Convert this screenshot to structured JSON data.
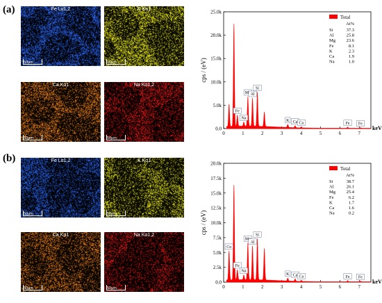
{
  "figure": {
    "panels": [
      {
        "letter": "(a)",
        "maps": [
          {
            "label": "Fe Lα1,2",
            "color": "#2f6bff",
            "scale": "50μm"
          },
          {
            "label": "K Kα1",
            "color": "#f2f21a",
            "scale": "50μm"
          },
          {
            "label": "Ca Kα1",
            "color": "#ff8a1a",
            "scale": "50μm"
          },
          {
            "label": "Na Kα1,2",
            "color": "#ff1a1a",
            "scale": "50μm"
          }
        ]
      },
      {
        "letter": "(b)",
        "maps": [
          {
            "label": "Fe Lα1,2",
            "color": "#2f6bff",
            "scale": "50μm"
          },
          {
            "label": "K Kα1",
            "color": "#f2f21a",
            "scale": "50μm"
          },
          {
            "label": "Ca Kα1",
            "color": "#ff8a1a",
            "scale": "50μm"
          },
          {
            "label": "Na Kα1,2",
            "color": "#ff1a1a",
            "scale": "50μm"
          }
        ]
      }
    ]
  },
  "chart_data": [
    {
      "type": "area",
      "ylabel": "cps / (eV)",
      "xlabel": "keV",
      "xlim": [
        0,
        7.6
      ],
      "ylim": [
        0,
        25000
      ],
      "xticks": [
        "0",
        "1",
        "2",
        "3",
        "4",
        "5",
        "6",
        "7"
      ],
      "yticks": [
        "0.0",
        "5.0k",
        "10.0k",
        "15.0k",
        "20.0k",
        "25.0k"
      ],
      "series": [
        {
          "name": "Total",
          "color": "#ff0000"
        }
      ],
      "peaks": [
        {
          "x": 0.28,
          "y": 4800
        },
        {
          "x": 0.53,
          "y": 22000
        },
        {
          "x": 0.71,
          "y": 2400
        },
        {
          "x": 1.04,
          "y": 900
        },
        {
          "x": 1.25,
          "y": 6300
        },
        {
          "x": 1.49,
          "y": 6000
        },
        {
          "x": 1.74,
          "y": 7300
        },
        {
          "x": 2.1,
          "y": 3100
        },
        {
          "x": 3.31,
          "y": 650
        },
        {
          "x": 3.69,
          "y": 420
        },
        {
          "x": 4.01,
          "y": 200
        },
        {
          "x": 6.4,
          "y": 230
        },
        {
          "x": 7.06,
          "y": 120
        }
      ],
      "peak_labels": [
        {
          "text": "Fe",
          "x": 0.71
        },
        {
          "text": "Na",
          "x": 1.04
        },
        {
          "text": "Mg",
          "x": 1.25
        },
        {
          "text": "Al",
          "x": 1.49
        },
        {
          "text": "Si",
          "x": 1.74
        },
        {
          "text": "K",
          "x": 3.31
        },
        {
          "text": "Ca",
          "x": 3.69
        },
        {
          "text": "Ca",
          "x": 4.01
        },
        {
          "text": "Fe",
          "x": 6.4
        },
        {
          "text": "Fe",
          "x": 7.06
        }
      ],
      "legend": {
        "position": "top-right",
        "title": "Total",
        "subtitle": "At%",
        "rows": [
          {
            "element": "Si",
            "value": "37.3"
          },
          {
            "element": "Al",
            "value": "25.8"
          },
          {
            "element": "Mg",
            "value": "23.6"
          },
          {
            "element": "Fe",
            "value": "8.1"
          },
          {
            "element": "K",
            "value": "2.3"
          },
          {
            "element": "Ca",
            "value": "1.9"
          },
          {
            "element": "Na",
            "value": "1.0"
          }
        ]
      }
    },
    {
      "type": "area",
      "ylabel": "cps / (eV)",
      "xlabel": "keV",
      "xlim": [
        0,
        7.6
      ],
      "ylim": [
        0,
        20000
      ],
      "xticks": [
        "0",
        "1",
        "2",
        "3",
        "4",
        "5",
        "6",
        "7"
      ],
      "yticks": [
        "0.0",
        "2.5k",
        "5.0k",
        "7.5k",
        "10.0k",
        "12.5k",
        "15.0k",
        "17.5k",
        "20.0k"
      ],
      "series": [
        {
          "name": "Total",
          "color": "#ff0000"
        }
      ],
      "peaks": [
        {
          "x": 0.28,
          "y": 4900
        },
        {
          "x": 0.53,
          "y": 16000
        },
        {
          "x": 0.71,
          "y": 1700
        },
        {
          "x": 1.04,
          "y": 800
        },
        {
          "x": 1.25,
          "y": 6200
        },
        {
          "x": 1.49,
          "y": 5700
        },
        {
          "x": 1.74,
          "y": 6900
        },
        {
          "x": 2.1,
          "y": 5300
        },
        {
          "x": 3.31,
          "y": 500
        },
        {
          "x": 3.69,
          "y": 400
        },
        {
          "x": 4.01,
          "y": 180
        },
        {
          "x": 6.4,
          "y": 200
        },
        {
          "x": 7.06,
          "y": 110
        }
      ],
      "peak_labels": [
        {
          "text": "Co",
          "x": 0.28
        },
        {
          "text": "Fe",
          "x": 0.71
        },
        {
          "text": "Na",
          "x": 1.04
        },
        {
          "text": "Mg",
          "x": 1.25
        },
        {
          "text": "Al",
          "x": 1.49
        },
        {
          "text": "Si",
          "x": 1.74
        },
        {
          "text": "K",
          "x": 3.31
        },
        {
          "text": "Ca",
          "x": 3.69
        },
        {
          "text": "Ca",
          "x": 4.01
        },
        {
          "text": "Fe",
          "x": 6.4
        },
        {
          "text": "Fe",
          "x": 7.06
        }
      ],
      "legend": {
        "position": "top-right",
        "title": "Total",
        "subtitle": "At%",
        "rows": [
          {
            "element": "Si",
            "value": "38.7"
          },
          {
            "element": "Al",
            "value": "26.1"
          },
          {
            "element": "Mg",
            "value": "25.4"
          },
          {
            "element": "Fe",
            "value": "6.2"
          },
          {
            "element": "K",
            "value": "1.7"
          },
          {
            "element": "Ca",
            "value": "1.6"
          },
          {
            "element": "Na",
            "value": "0.2"
          }
        ]
      }
    }
  ]
}
